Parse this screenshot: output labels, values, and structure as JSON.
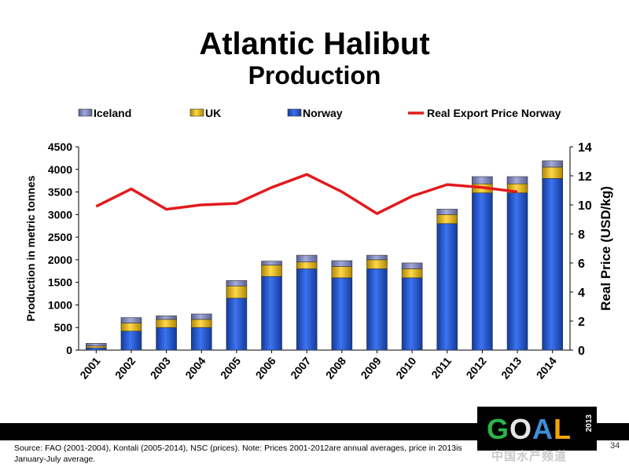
{
  "slide": {
    "title": "Atlantic Halibut",
    "subtitle": "Production",
    "source_note": "Source: FAO (2001-2004), Kontali (2005-2014), NSC (prices). Note: Prices 2001-2012are annual averages, price in 2013is January-July average.",
    "page_number": "34",
    "logo_text": "GOAL",
    "logo_year": "2013",
    "watermark": "中国水产频道"
  },
  "colors": {
    "norway": "#1f4fc8",
    "uk": "#e8b400",
    "iceland": "#7d84b8",
    "price_line": "#e31a1c"
  },
  "chart_data": {
    "type": "bar",
    "stacked": true,
    "categories": [
      "2001",
      "2002",
      "2003",
      "2004",
      "2005",
      "2006",
      "2007",
      "2008",
      "2009",
      "2010",
      "2011",
      "2012",
      "2013",
      "2014"
    ],
    "series": [
      {
        "name": "Norway",
        "values": [
          50,
          420,
          500,
          500,
          1150,
          1630,
          1800,
          1600,
          1800,
          1600,
          2800,
          3480,
          3480,
          3800
        ]
      },
      {
        "name": "UK",
        "values": [
          40,
          180,
          180,
          180,
          270,
          250,
          150,
          250,
          200,
          200,
          200,
          200,
          200,
          250
        ]
      },
      {
        "name": "Iceland",
        "values": [
          60,
          120,
          80,
          120,
          120,
          90,
          150,
          130,
          100,
          130,
          120,
          160,
          160,
          140
        ]
      }
    ],
    "line_series": {
      "name": "Real Export Price Norway",
      "axis": "right",
      "values": [
        9.9,
        11.1,
        9.7,
        10.0,
        10.1,
        11.2,
        12.1,
        10.9,
        9.4,
        10.6,
        11.4,
        11.2,
        10.9,
        null
      ]
    },
    "legend": [
      "Iceland",
      "UK",
      "Norway",
      "Real Export Price Norway"
    ],
    "legend_position": "top",
    "ylabel": "Production in metric tonnes",
    "y2label": "Real Price (USD/kg)",
    "ylim": [
      0,
      4500
    ],
    "y2lim": [
      0,
      14
    ],
    "yticks": [
      "0",
      "500",
      "1000",
      "1500",
      "2000",
      "2500",
      "3000",
      "3500",
      "4000",
      "4500"
    ],
    "y2ticks": [
      "0",
      "2",
      "4",
      "6",
      "8",
      "10",
      "12",
      "14"
    ]
  }
}
